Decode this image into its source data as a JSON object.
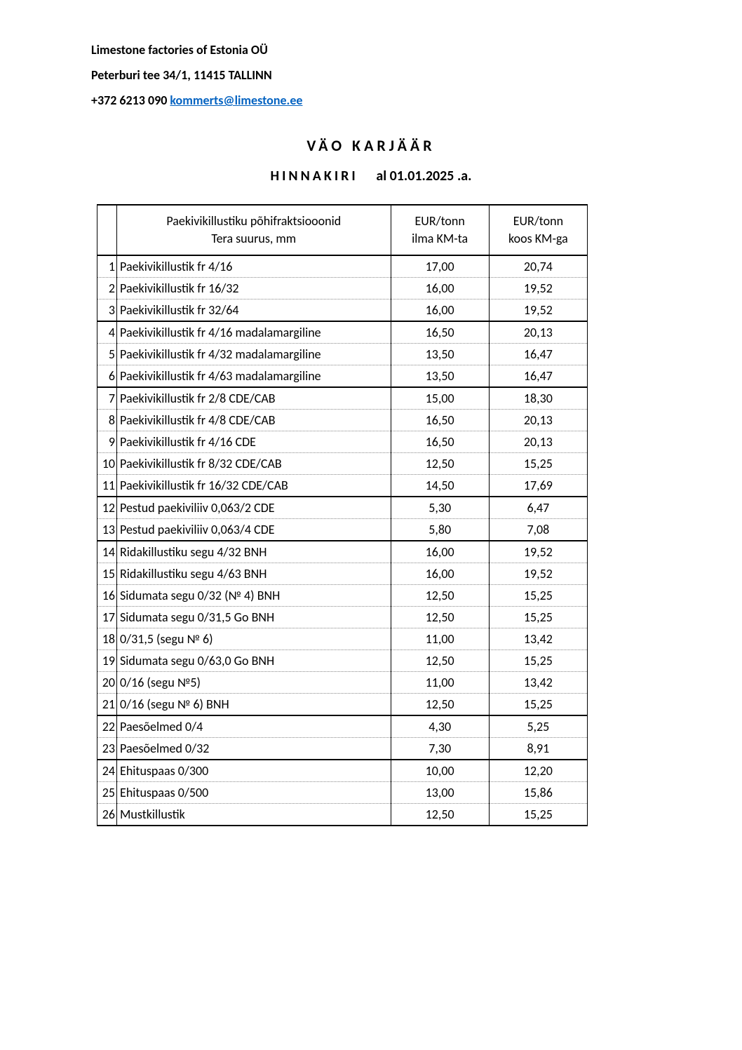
{
  "company": {
    "name": "Limestone factories of Estonia OÜ",
    "address": "Peterburi tee 34/1, 11415 TALLINN",
    "phone": "+372 6213 090",
    "email": "kommerts@limestone.ee"
  },
  "titles": {
    "main": "VÄO KARJÄÄR",
    "sub_prefix": "HINNAKIRI",
    "sub_date": "al  01.01.2025 .a."
  },
  "table": {
    "headers": {
      "col_name_line1": "Paekivikillustiku põhifraktsiooonid",
      "col_name_line2": "Tera suurus, mm",
      "col_p1_line1": "EUR/tonn",
      "col_p1_line2": "ilma KM-ta",
      "col_p2_line1": "EUR/tonn",
      "col_p2_line2": "koos KM-ga"
    },
    "rows": [
      {
        "n": "1",
        "name": "Paekivikillustik fr 4/16",
        "p1": "17,00",
        "p2": "20,74",
        "group_end": false
      },
      {
        "n": "2",
        "name": "Paekivikillustik fr 16/32",
        "p1": "16,00",
        "p2": "19,52",
        "group_end": false
      },
      {
        "n": "3",
        "name": "Paekivikillustik fr 32/64",
        "p1": "16,00",
        "p2": "19,52",
        "group_end": true
      },
      {
        "n": "4",
        "name": "Paekivikillustik fr 4/16 madalamargiline",
        "p1": "16,50",
        "p2": "20,13",
        "group_end": false
      },
      {
        "n": "5",
        "name": "Paekivikillustik fr 4/32 madalamargiline",
        "p1": "13,50",
        "p2": "16,47",
        "group_end": false
      },
      {
        "n": "6",
        "name": "Paekivikillustik fr 4/63 madalamargiline",
        "p1": "13,50",
        "p2": "16,47",
        "group_end": true
      },
      {
        "n": "7",
        "name": "Paekivikillustik fr 2/8 CDE/CAB",
        "p1": "15,00",
        "p2": "18,30",
        "group_end": false
      },
      {
        "n": "8",
        "name": "Paekivikillustik fr 4/8 CDE/CAB",
        "p1": "16,50",
        "p2": "20,13",
        "group_end": false
      },
      {
        "n": "9",
        "name": "Paekivikillustik fr 4/16 CDE",
        "p1": "16,50",
        "p2": "20,13",
        "group_end": false
      },
      {
        "n": "10",
        "name": "Paekivikillustik fr 8/32 CDE/CAB",
        "p1": "12,50",
        "p2": "15,25",
        "group_end": false
      },
      {
        "n": "11",
        "name": "Paekivikillustik fr 16/32 CDE/CAB",
        "p1": "14,50",
        "p2": "17,69",
        "group_end": true
      },
      {
        "n": "12",
        "name": "Pestud paekiviliiv 0,063/2 CDE",
        "p1": "5,30",
        "p2": "6,47",
        "group_end": false
      },
      {
        "n": "13",
        "name": "Pestud paekiviliiv 0,063/4 CDE",
        "p1": "5,80",
        "p2": "7,08",
        "group_end": true
      },
      {
        "n": "14",
        "name": "Ridakillustiku segu 4/32 BNH",
        "p1": "16,00",
        "p2": "19,52",
        "group_end": false
      },
      {
        "n": "15",
        "name": "Ridakillustiku segu 4/63 BNH",
        "p1": "16,00",
        "p2": "19,52",
        "group_end": false
      },
      {
        "n": "16",
        "name": "Sidumata segu 0/32 (№ 4) BNH",
        "p1": "12,50",
        "p2": "15,25",
        "group_end": false
      },
      {
        "n": "17",
        "name": "Sidumata segu 0/31,5 Go BNH",
        "p1": "12,50",
        "p2": "15,25",
        "group_end": false
      },
      {
        "n": "18",
        "name": "0/31,5 (segu № 6)",
        "p1": "11,00",
        "p2": "13,42",
        "group_end": false
      },
      {
        "n": "19",
        "name": "Sidumata segu 0/63,0 Go BNH",
        "p1": "12,50",
        "p2": "15,25",
        "group_end": false
      },
      {
        "n": "20",
        "name": "0/16 (segu №5)",
        "p1": "11,00",
        "p2": "13,42",
        "group_end": false
      },
      {
        "n": "21",
        "name": "0/16 (segu № 6) BNH",
        "p1": "12,50",
        "p2": "15,25",
        "group_end": true
      },
      {
        "n": "22",
        "name": "Paesõelmed 0/4",
        "p1": "4,30",
        "p2": "5,25",
        "group_end": false
      },
      {
        "n": "23",
        "name": "Paesõelmed 0/32",
        "p1": "7,30",
        "p2": "8,91",
        "group_end": true
      },
      {
        "n": "24",
        "name": "Ehituspaas 0/300",
        "p1": "10,00",
        "p2": "12,20",
        "group_end": false
      },
      {
        "n": "25",
        "name": "Ehituspaas 0/500",
        "p1": "13,00",
        "p2": "15,86",
        "group_end": false
      },
      {
        "n": "26",
        "name": "Mustkillustik",
        "p1": "12,50",
        "p2": "15,25",
        "group_end": true
      }
    ]
  }
}
